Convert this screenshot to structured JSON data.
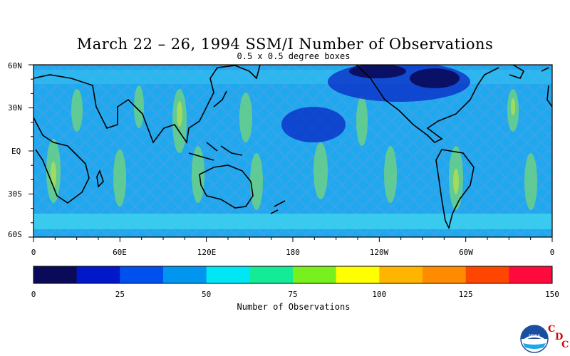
{
  "map": {
    "title": "March 22 – 26, 1994 SSM/I Number of Observations",
    "subtitle": "0.5 x 0.5 degree boxes",
    "latitude_labels": [
      "60N",
      "30N",
      "EQ",
      "30S",
      "60S"
    ],
    "longitude_labels": [
      "0",
      "60E",
      "120E",
      "180",
      "120W",
      "60W",
      "0"
    ]
  },
  "colorbar": {
    "title": "Number of Observations",
    "tick_labels": [
      "0",
      "25",
      "50",
      "75",
      "100",
      "125",
      "150"
    ],
    "range": [
      0,
      150
    ],
    "bin_width": 12.5,
    "colors": [
      "#0a0a5a",
      "#0018c8",
      "#0050f0",
      "#0096f0",
      "#00e6f5",
      "#14eb96",
      "#78f01e",
      "#ffff00",
      "#ffb400",
      "#ff8c00",
      "#ff4600",
      "#ff0a3c"
    ]
  },
  "logo": {
    "name": "noaa-logo",
    "text": "NOAA",
    "letters": [
      "C",
      "D",
      "C"
    ]
  }
}
